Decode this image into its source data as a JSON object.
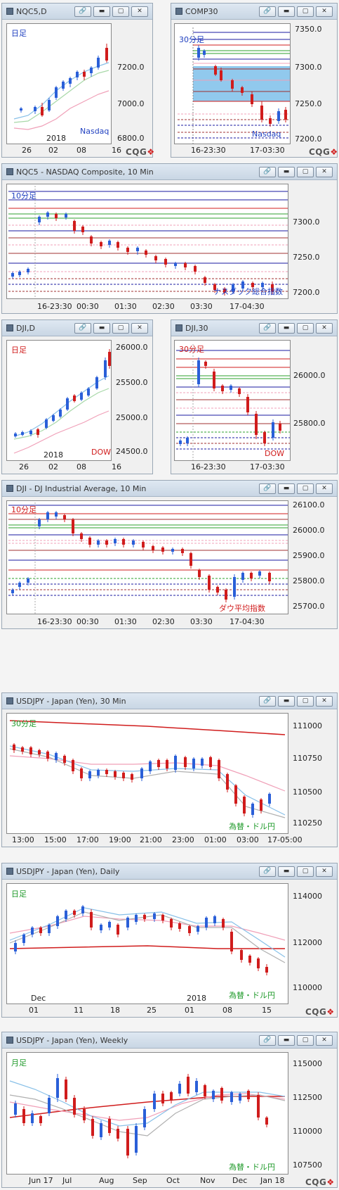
{
  "windows": {
    "nqc5d": {
      "title": "NQC5,D",
      "period_label": "日足",
      "symbol_label": "Nasdaq",
      "year_label": "2018",
      "y_ticks": [
        "7200.0",
        "7000.0",
        "6800.0"
      ],
      "x_ticks": [
        "26",
        "02",
        "08",
        "16"
      ]
    },
    "comp30": {
      "title": "COMP30",
      "period_label": "30分足",
      "symbol_label": "Nasdaq",
      "y_ticks": [
        "7350.0",
        "7300.0",
        "7250.0",
        "7200.0"
      ],
      "x_ticks": [
        "16-23:30",
        "17-03:30"
      ]
    },
    "nqc5_10": {
      "title": "NQC5 - NASDAQ Composite, 10 Min",
      "period_label": "10分足",
      "symbol_label": "ナスダック総合指数",
      "y_ticks": [
        "7300.0",
        "7250.0",
        "7200.0"
      ],
      "x_ticks": [
        "16-23:30",
        "00:30",
        "01:30",
        "02:30",
        "03:30",
        "17-04:30"
      ]
    },
    "djid": {
      "title": "DJI,D",
      "period_label": "日足",
      "symbol_label": "DOW",
      "year_label": "2018",
      "y_ticks": [
        "26000.0",
        "25500.0",
        "25000.0",
        "24500.0"
      ],
      "x_ticks": [
        "26",
        "02",
        "08",
        "16"
      ]
    },
    "dji30": {
      "title": "DJI,30",
      "period_label": "30分足",
      "symbol_label": "DOW",
      "y_ticks": [
        "26000.0",
        "25800.0"
      ],
      "x_ticks": [
        "16-23:30",
        "17-03:30"
      ]
    },
    "dji10": {
      "title": "DJI - DJ Industrial Average, 10 Min",
      "period_label": "10分足",
      "symbol_label": "ダウ平均指数",
      "y_ticks": [
        "26100.0",
        "26000.0",
        "25900.0",
        "25800.0",
        "25700.0"
      ],
      "x_ticks": [
        "16-23:30",
        "00:30",
        "01:30",
        "02:30",
        "03:30",
        "17-04:30"
      ]
    },
    "usdjpy30": {
      "title": "USDJPY - Japan (Yen), 30 Min",
      "period_label": "30分足",
      "symbol_label": "為替・ドル円",
      "y_ticks": [
        "111000",
        "110750",
        "110500",
        "110250"
      ],
      "x_ticks": [
        "13:00",
        "15:00",
        "17:00",
        "19:00",
        "21:00",
        "23:00",
        "01:00",
        "03:00",
        "17-05:00"
      ]
    },
    "usdjpyd": {
      "title": "USDJPY - Japan (Yen), Daily",
      "period_label": "日足",
      "symbol_label": "為替・ドル円",
      "month_label": "Dec",
      "year_label": "2018",
      "y_ticks": [
        "114000",
        "112000",
        "110000"
      ],
      "x_ticks": [
        "01",
        "11",
        "18",
        "25",
        "01",
        "08",
        "15"
      ]
    },
    "usdjpyw": {
      "title": "USDJPY - Japan (Yen), Weekly",
      "period_label": "月足",
      "symbol_label": "為替・ドル円",
      "y_ticks": [
        "115000",
        "112500",
        "110000",
        "107500"
      ],
      "x_ticks": [
        "Jun 17",
        "Jul",
        "Aug",
        "Sep",
        "Oct",
        "Nov",
        "Dec",
        "Jan 18"
      ]
    }
  },
  "buttons": {
    "link": "🔗",
    "minimize": "▬",
    "restore": "▢",
    "close": "✕"
  },
  "brand": {
    "a": "CQG",
    "b": "❖"
  },
  "colors": {
    "up": "#2a5fd8",
    "down": "#d01c1c",
    "title_bar": "#c9d6e4",
    "ma_light": "#88c0e8",
    "ma_pink": "#f0a0b8"
  }
}
